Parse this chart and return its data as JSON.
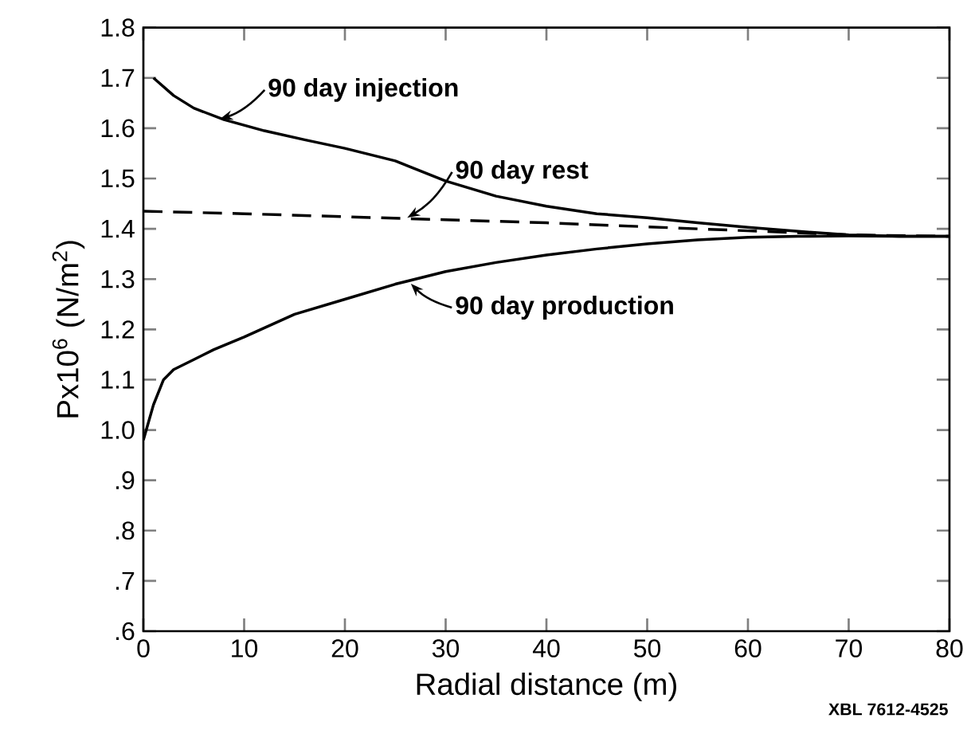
{
  "chart_data": {
    "type": "line",
    "xlabel": "Radial distance (m)",
    "ylabel": "Px10$^{6}$  (N/m$^{2}$)",
    "xlim": [
      0,
      80
    ],
    "xticks": [
      0,
      10,
      20,
      30,
      40,
      50,
      60,
      70,
      80
    ],
    "ylim": [
      0.6,
      1.8
    ],
    "yticks": [
      {
        "value": 0.6,
        "label": ".6"
      },
      {
        "value": 0.7,
        "label": ".7"
      },
      {
        "value": 0.8,
        "label": ".8"
      },
      {
        "value": 0.9,
        "label": ".9"
      },
      {
        "value": 1,
        "label": "1.0"
      },
      1.1,
      1.2,
      1.3,
      1.4,
      1.5,
      1.6,
      1.7,
      1.8
    ],
    "grid": false,
    "marker": "none",
    "series": [
      {
        "color": "#000000",
        "line_style": "solid",
        "x": [
          1,
          3,
          5,
          8,
          12,
          16,
          20,
          25,
          30,
          35,
          40,
          45,
          50,
          55,
          60,
          65,
          70,
          75,
          80
        ],
        "values": [
          1.7,
          1.665,
          1.64,
          1.617,
          1.595,
          1.577,
          1.56,
          1.535,
          1.495,
          1.465,
          1.445,
          1.43,
          1.422,
          1.412,
          1.403,
          1.395,
          1.388,
          1.385,
          1.385
        ]
      },
      {
        "color": "#000000",
        "line_style": "dashed",
        "x": [
          0,
          10,
          20,
          30,
          40,
          50,
          60,
          70,
          80
        ],
        "values": [
          1.435,
          1.43,
          1.424,
          1.418,
          1.412,
          1.404,
          1.396,
          1.388,
          1.385
        ]
      },
      {
        "color": "#000000",
        "line_style": "solid",
        "x": [
          0,
          1,
          2,
          3,
          5,
          7,
          10,
          15,
          20,
          25,
          30,
          35,
          40,
          45,
          50,
          55,
          60,
          65,
          70,
          75,
          80
        ],
        "values": [
          0.98,
          1.05,
          1.1,
          1.12,
          1.14,
          1.16,
          1.185,
          1.23,
          1.26,
          1.29,
          1.315,
          1.333,
          1.348,
          1.36,
          1.37,
          1.378,
          1.383,
          1.385,
          1.386,
          1.385,
          1.385
        ]
      }
    ],
    "annotations": [
      {
        "text": "90 day injection",
        "x": 7.4,
        "y": 1.617
      },
      {
        "text": "90 day rest",
        "x": 26,
        "y": 1.42
      },
      {
        "text": "90 day production",
        "x": 26.4,
        "y": 1.294
      },
      "XBL 7612-4525"
    ]
  }
}
